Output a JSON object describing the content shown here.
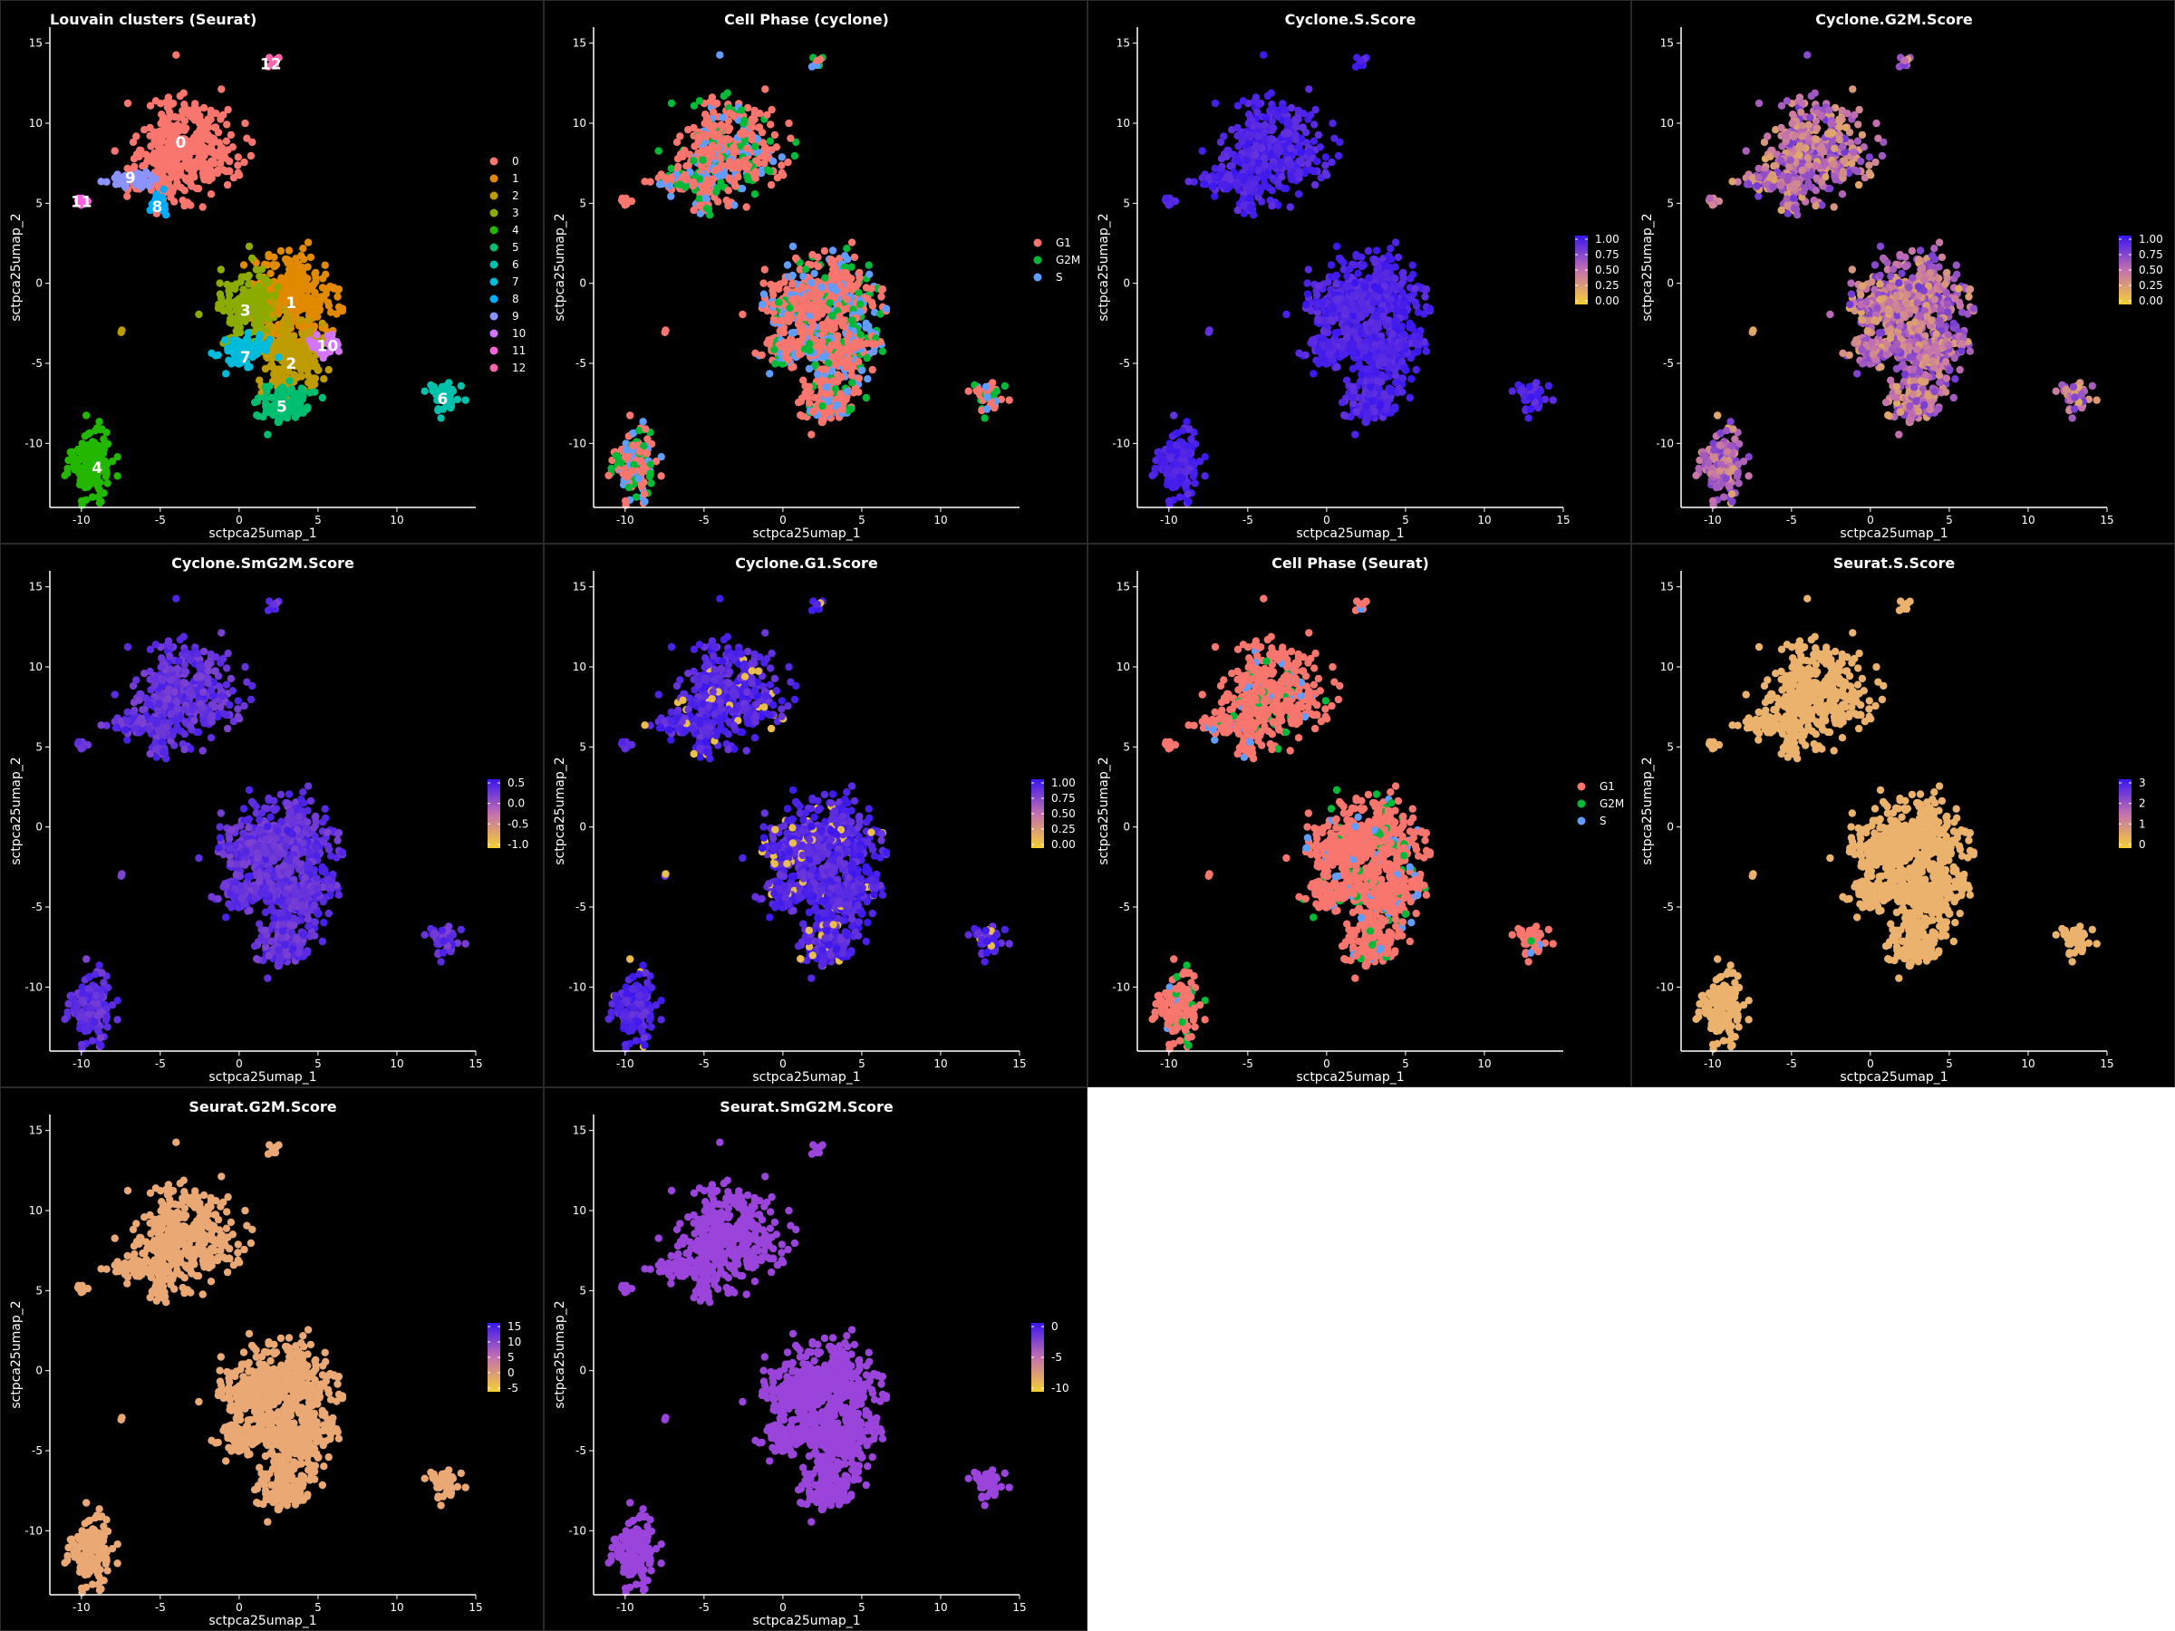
{
  "colors": {
    "background": "#000000",
    "axis": "#ffffff",
    "text": "#ffffff",
    "panel_border": "#2a2a2a",
    "outer": "#ffffff"
  },
  "chart_data": [
    {
      "type": "scatter",
      "title": "Louvain clusters (Seurat)",
      "xlabel": "sctpca25umap_1",
      "ylabel": "sctpca25umap_2",
      "xlim": [
        -12,
        15
      ],
      "ylim": [
        -14,
        16
      ],
      "xticks": [
        -10,
        -5,
        0,
        5,
        10
      ],
      "yticks": [
        -10,
        -5,
        0,
        5,
        10,
        15
      ],
      "color_mode": "categorical",
      "legend": {
        "entries": [
          "0",
          "1",
          "2",
          "3",
          "4",
          "5",
          "6",
          "7",
          "8",
          "9",
          "10",
          "11",
          "12"
        ],
        "colors": [
          "#F8766D",
          "#E18A00",
          "#BE9C00",
          "#8CAB00",
          "#24B700",
          "#00BE70",
          "#00C1AB",
          "#00BBDA",
          "#00ACFC",
          "#8B93FF",
          "#D575FE",
          "#F962DD",
          "#FF65AC"
        ]
      },
      "cluster_labels": [
        {
          "text": "0",
          "x": -3.7,
          "y": 8.8,
          "color": "#F8766D"
        },
        {
          "text": "1",
          "x": 3.3,
          "y": -1.2,
          "color": "#E18A00"
        },
        {
          "text": "2",
          "x": 3.3,
          "y": -5.0,
          "color": "#BE9C00"
        },
        {
          "text": "3",
          "x": 0.4,
          "y": -1.7,
          "color": "#8CAB00"
        },
        {
          "text": "4",
          "x": -9.0,
          "y": -11.5,
          "color": "#24B700"
        },
        {
          "text": "5",
          "x": 2.7,
          "y": -7.7,
          "color": "#00BE70"
        },
        {
          "text": "6",
          "x": 12.9,
          "y": -7.2,
          "color": "#00C1AB"
        },
        {
          "text": "7",
          "x": 0.4,
          "y": -4.6,
          "color": "#00BBDA"
        },
        {
          "text": "8",
          "x": -5.2,
          "y": 4.8,
          "color": "#00ACFC"
        },
        {
          "text": "9",
          "x": -6.9,
          "y": 6.6,
          "color": "#8B93FF"
        },
        {
          "text": "10",
          "x": 5.6,
          "y": -3.9,
          "color": "#D575FE"
        },
        {
          "text": "11",
          "x": -10.0,
          "y": 5.1,
          "color": "#F962DD"
        },
        {
          "text": "12",
          "x": 2.0,
          "y": 13.7,
          "color": "#FF65AC"
        }
      ]
    },
    {
      "type": "scatter",
      "title": "Cell Phase (cyclone)",
      "xlabel": "sctpca25umap_1",
      "ylabel": "sctpca25umap_2",
      "xlim": [
        -12,
        15
      ],
      "ylim": [
        -14,
        16
      ],
      "xticks": [
        -10,
        -5,
        0,
        5,
        10
      ],
      "yticks": [
        -10,
        -5,
        0,
        5,
        10,
        15
      ],
      "color_mode": "categorical",
      "legend": {
        "entries": [
          "G1",
          "G2M",
          "S"
        ],
        "colors": [
          "#F8766D",
          "#00BA38",
          "#619CFF"
        ]
      }
    },
    {
      "type": "scatter",
      "title": "Cyclone.S.Score",
      "xlabel": "sctpca25umap_1",
      "ylabel": "sctpca25umap_2",
      "xlim": [
        -12,
        15
      ],
      "ylim": [
        -14,
        16
      ],
      "xticks": [
        -10,
        -5,
        0,
        5,
        10,
        15
      ],
      "yticks": [
        -10,
        -5,
        0,
        5,
        10,
        15
      ],
      "color_mode": "continuous",
      "colorbar": {
        "ticks": [
          "1.00",
          "0.75",
          "0.50",
          "0.25",
          "0.00"
        ],
        "low": "#F5D033",
        "mid": "#C470B0",
        "high": "#3A16F0"
      }
    },
    {
      "type": "scatter",
      "title": "Cyclone.G2M.Score",
      "xlabel": "sctpca25umap_1",
      "ylabel": "sctpca25umap_2",
      "xlim": [
        -12,
        15
      ],
      "ylim": [
        -14,
        16
      ],
      "xticks": [
        -10,
        -5,
        0,
        5,
        10,
        15
      ],
      "yticks": [
        -10,
        -5,
        0,
        5,
        10,
        15
      ],
      "color_mode": "continuous",
      "colorbar": {
        "ticks": [
          "1.00",
          "0.75",
          "0.50",
          "0.25",
          "0.00"
        ],
        "low": "#F5D033",
        "mid": "#C470B0",
        "high": "#3A16F0"
      }
    },
    {
      "type": "scatter",
      "title": "Cyclone.SmG2M.Score",
      "xlabel": "sctpca25umap_1",
      "ylabel": "sctpca25umap_2",
      "xlim": [
        -12,
        15
      ],
      "ylim": [
        -14,
        16
      ],
      "xticks": [
        -10,
        -5,
        0,
        5,
        10,
        15
      ],
      "yticks": [
        -10,
        -5,
        0,
        5,
        10,
        15
      ],
      "color_mode": "continuous",
      "colorbar": {
        "ticks": [
          "0.5",
          "0.0",
          "-0.5",
          "-1.0"
        ],
        "low": "#F5D033",
        "mid": "#C470B0",
        "high": "#3A16F0"
      }
    },
    {
      "type": "scatter",
      "title": "Cyclone.G1.Score",
      "xlabel": "sctpca25umap_1",
      "ylabel": "sctpca25umap_2",
      "xlim": [
        -12,
        15
      ],
      "ylim": [
        -14,
        16
      ],
      "xticks": [
        -10,
        -5,
        0,
        5,
        10,
        15
      ],
      "yticks": [
        -10,
        -5,
        0,
        5,
        10,
        15
      ],
      "color_mode": "continuous",
      "colorbar": {
        "ticks": [
          "1.00",
          "0.75",
          "0.50",
          "0.25",
          "0.00"
        ],
        "low": "#F5D033",
        "mid": "#C470B0",
        "high": "#3A16F0"
      }
    },
    {
      "type": "scatter",
      "title": "Cell Phase (Seurat)",
      "xlabel": "sctpca25umap_1",
      "ylabel": "sctpca25umap_2",
      "xlim": [
        -12,
        15
      ],
      "ylim": [
        -14,
        16
      ],
      "xticks": [
        -10,
        -5,
        0,
        5,
        10
      ],
      "yticks": [
        -10,
        -5,
        0,
        5,
        10,
        15
      ],
      "color_mode": "categorical",
      "legend": {
        "entries": [
          "G1",
          "G2M",
          "S"
        ],
        "colors": [
          "#F8766D",
          "#00BA38",
          "#619CFF"
        ]
      }
    },
    {
      "type": "scatter",
      "title": "Seurat.S.Score",
      "xlabel": "sctpca25umap_1",
      "ylabel": "sctpca25umap_2",
      "xlim": [
        -12,
        15
      ],
      "ylim": [
        -14,
        16
      ],
      "xticks": [
        -10,
        -5,
        0,
        5,
        10,
        15
      ],
      "yticks": [
        -10,
        -5,
        0,
        5,
        10,
        15
      ],
      "color_mode": "continuous",
      "colorbar": {
        "ticks": [
          "3",
          "2",
          "1",
          "0"
        ],
        "low": "#F5D033",
        "mid": "#C470B0",
        "high": "#3A16F0"
      }
    },
    {
      "type": "scatter",
      "title": "Seurat.G2M.Score",
      "xlabel": "sctpca25umap_1",
      "ylabel": "sctpca25umap_2",
      "xlim": [
        -12,
        15
      ],
      "ylim": [
        -14,
        16
      ],
      "xticks": [
        -10,
        -5,
        0,
        5,
        10,
        15
      ],
      "yticks": [
        -10,
        -5,
        0,
        5,
        10,
        15
      ],
      "color_mode": "continuous",
      "colorbar": {
        "ticks": [
          "15",
          "10",
          "5",
          "0",
          "-5"
        ],
        "low": "#F5D033",
        "mid": "#C470B0",
        "high": "#3A16F0"
      }
    },
    {
      "type": "scatter",
      "title": "Seurat.SmG2M.Score",
      "xlabel": "sctpca25umap_1",
      "ylabel": "sctpca25umap_2",
      "xlim": [
        -12,
        15
      ],
      "ylim": [
        -14,
        16
      ],
      "xticks": [
        -10,
        -5,
        0,
        5,
        10,
        15
      ],
      "yticks": [
        -10,
        -5,
        0,
        5,
        10,
        15
      ],
      "color_mode": "continuous",
      "colorbar": {
        "ticks": [
          "0",
          "-5",
          "-10"
        ],
        "low": "#F5D033",
        "mid": "#C470B0",
        "high": "#3A16F0"
      }
    }
  ]
}
